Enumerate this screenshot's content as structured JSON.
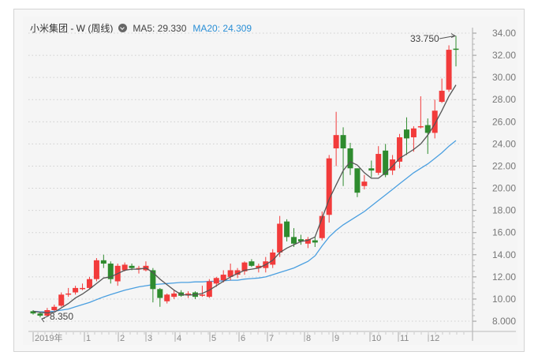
{
  "title": {
    "name": "小米集团 - W (周线)",
    "ma5_label": "MA5: 29.330",
    "ma20_label": "MA20: 24.309"
  },
  "colors": {
    "up": "#f23b3b",
    "down": "#2e8b2e",
    "ma5": "#555555",
    "ma20": "#4a9fe0",
    "grid": "#cfcfcf"
  },
  "annotations": {
    "high": "33.750",
    "low": "8.350"
  },
  "chart_data": {
    "type": "candlestick",
    "title": "小米集团 - W (周线)",
    "subtitle": "MA5: 29.330  MA20: 24.309",
    "xlabel": "",
    "ylabel": "",
    "ylim": [
      7.5,
      34.5
    ],
    "y_ticks": [
      "34.00",
      "32.00",
      "30.00",
      "28.00",
      "26.00",
      "24.00",
      "22.00",
      "20.00",
      "18.00",
      "16.00",
      "14.00",
      "12.00",
      "10.00",
      "8.000"
    ],
    "x_ticks": [
      "2019年",
      "1",
      "2",
      "3",
      "4",
      "5",
      "6",
      "7",
      "8",
      "9",
      "10",
      "11",
      "12"
    ],
    "grid": true,
    "legend": [
      "MA5: 29.330",
      "MA20: 24.309"
    ],
    "annotations": [
      {
        "text": "33.750",
        "type": "max"
      },
      {
        "text": "8.350",
        "type": "min"
      }
    ],
    "candles": [
      {
        "o": 8.9,
        "h": 9.0,
        "l": 8.6,
        "c": 8.7
      },
      {
        "o": 8.7,
        "h": 8.8,
        "l": 8.35,
        "c": 8.5
      },
      {
        "o": 8.5,
        "h": 9.2,
        "l": 8.4,
        "c": 9.0
      },
      {
        "o": 9.0,
        "h": 9.5,
        "l": 8.9,
        "c": 9.3
      },
      {
        "o": 9.4,
        "h": 10.6,
        "l": 9.3,
        "c": 10.4
      },
      {
        "o": 10.5,
        "h": 11.0,
        "l": 10.2,
        "c": 10.5
      },
      {
        "o": 10.6,
        "h": 11.2,
        "l": 10.4,
        "c": 11.0
      },
      {
        "o": 11.0,
        "h": 11.4,
        "l": 10.8,
        "c": 11.0
      },
      {
        "o": 11.0,
        "h": 12.0,
        "l": 10.9,
        "c": 11.8
      },
      {
        "o": 11.8,
        "h": 13.7,
        "l": 11.6,
        "c": 13.5
      },
      {
        "o": 13.5,
        "h": 14.0,
        "l": 12.8,
        "c": 13.2
      },
      {
        "o": 13.2,
        "h": 13.4,
        "l": 11.4,
        "c": 11.8
      },
      {
        "o": 11.6,
        "h": 13.2,
        "l": 11.2,
        "c": 13.0
      },
      {
        "o": 12.6,
        "h": 13.3,
        "l": 12.5,
        "c": 13.1
      },
      {
        "o": 13.0,
        "h": 13.2,
        "l": 12.6,
        "c": 12.8
      },
      {
        "o": 12.8,
        "h": 13.0,
        "l": 12.3,
        "c": 12.8
      },
      {
        "o": 12.6,
        "h": 13.4,
        "l": 12.5,
        "c": 13.0
      },
      {
        "o": 12.6,
        "h": 12.8,
        "l": 9.7,
        "c": 10.9
      },
      {
        "o": 10.9,
        "h": 11.0,
        "l": 9.3,
        "c": 10.1
      },
      {
        "o": 9.8,
        "h": 10.5,
        "l": 9.6,
        "c": 10.4
      },
      {
        "o": 10.2,
        "h": 10.8,
        "l": 10.0,
        "c": 10.5
      },
      {
        "o": 10.6,
        "h": 10.8,
        "l": 10.2,
        "c": 10.3
      },
      {
        "o": 10.4,
        "h": 10.7,
        "l": 10.1,
        "c": 10.5
      },
      {
        "o": 10.6,
        "h": 10.7,
        "l": 10.0,
        "c": 10.2
      },
      {
        "o": 10.3,
        "h": 11.2,
        "l": 10.2,
        "c": 10.4
      },
      {
        "o": 10.2,
        "h": 11.8,
        "l": 10.1,
        "c": 11.6
      },
      {
        "o": 11.4,
        "h": 12.0,
        "l": 11.1,
        "c": 11.9
      },
      {
        "o": 11.7,
        "h": 12.6,
        "l": 11.5,
        "c": 12.2
      },
      {
        "o": 12.0,
        "h": 13.2,
        "l": 11.7,
        "c": 12.6
      },
      {
        "o": 12.2,
        "h": 12.8,
        "l": 11.9,
        "c": 12.6
      },
      {
        "o": 12.5,
        "h": 13.4,
        "l": 12.2,
        "c": 13.3
      },
      {
        "o": 13.4,
        "h": 13.6,
        "l": 12.9,
        "c": 13.0
      },
      {
        "o": 12.8,
        "h": 13.2,
        "l": 12.4,
        "c": 13.0
      },
      {
        "o": 12.8,
        "h": 13.8,
        "l": 12.4,
        "c": 13.4
      },
      {
        "o": 13.1,
        "h": 14.5,
        "l": 12.8,
        "c": 14.2
      },
      {
        "o": 14.2,
        "h": 17.5,
        "l": 13.8,
        "c": 16.8
      },
      {
        "o": 17.0,
        "h": 17.2,
        "l": 15.2,
        "c": 15.6
      },
      {
        "o": 15.6,
        "h": 16.4,
        "l": 14.7,
        "c": 15.0
      },
      {
        "o": 15.4,
        "h": 15.8,
        "l": 14.9,
        "c": 15.2
      },
      {
        "o": 15.0,
        "h": 15.6,
        "l": 14.6,
        "c": 15.4
      },
      {
        "o": 15.3,
        "h": 15.6,
        "l": 14.7,
        "c": 15.1
      },
      {
        "o": 15.5,
        "h": 17.9,
        "l": 15.3,
        "c": 17.5
      },
      {
        "o": 17.6,
        "h": 23.0,
        "l": 16.9,
        "c": 22.7
      },
      {
        "o": 23.6,
        "h": 26.9,
        "l": 22.0,
        "c": 24.8
      },
      {
        "o": 24.8,
        "h": 25.5,
        "l": 20.2,
        "c": 23.6
      },
      {
        "o": 23.6,
        "h": 24.1,
        "l": 21.2,
        "c": 21.8
      },
      {
        "o": 21.8,
        "h": 21.8,
        "l": 19.2,
        "c": 19.6
      },
      {
        "o": 20.2,
        "h": 21.2,
        "l": 19.9,
        "c": 20.6
      },
      {
        "o": 21.8,
        "h": 22.5,
        "l": 21.0,
        "c": 21.6
      },
      {
        "o": 21.4,
        "h": 23.8,
        "l": 21.2,
        "c": 23.1
      },
      {
        "o": 23.4,
        "h": 24.0,
        "l": 21.0,
        "c": 21.2
      },
      {
        "o": 21.6,
        "h": 23.0,
        "l": 21.2,
        "c": 22.6
      },
      {
        "o": 22.4,
        "h": 24.9,
        "l": 21.8,
        "c": 24.6
      },
      {
        "o": 25.3,
        "h": 26.4,
        "l": 23.0,
        "c": 24.5
      },
      {
        "o": 24.6,
        "h": 25.6,
        "l": 23.3,
        "c": 25.4
      },
      {
        "o": 25.6,
        "h": 28.3,
        "l": 25.4,
        "c": 25.6
      },
      {
        "o": 25.7,
        "h": 26.3,
        "l": 23.1,
        "c": 25.0
      },
      {
        "o": 25.0,
        "h": 28.0,
        "l": 24.5,
        "c": 27.0
      },
      {
        "o": 27.8,
        "h": 29.9,
        "l": 27.7,
        "c": 28.8
      },
      {
        "o": 28.9,
        "h": 32.9,
        "l": 28.7,
        "c": 32.5
      },
      {
        "o": 32.6,
        "h": 33.75,
        "l": 31.0,
        "c": 32.5
      }
    ],
    "ma5": [
      8.9,
      8.8,
      8.75,
      8.8,
      9.2,
      9.6,
      10.1,
      10.45,
      10.9,
      11.4,
      11.9,
      12.0,
      12.3,
      12.6,
      12.7,
      12.7,
      12.8,
      12.4,
      11.8,
      11.3,
      10.8,
      10.4,
      10.35,
      10.4,
      10.5,
      10.8,
      11.2,
      11.6,
      12.0,
      12.3,
      12.6,
      12.7,
      12.8,
      13.1,
      13.5,
      14.2,
      14.6,
      14.9,
      15.2,
      15.3,
      15.6,
      17.3,
      19.0,
      20.3,
      21.6,
      22.4,
      22.1,
      21.4,
      20.9,
      20.9,
      21.4,
      22.0,
      22.7,
      23.1,
      23.5,
      24.0,
      24.8,
      25.8,
      27.0,
      28.3,
      29.33
    ],
    "ma20": [
      8.9,
      8.85,
      8.85,
      8.9,
      9.0,
      9.1,
      9.3,
      9.5,
      9.7,
      9.95,
      10.2,
      10.4,
      10.6,
      10.8,
      10.95,
      11.1,
      11.2,
      11.3,
      11.35,
      11.4,
      11.45,
      11.5,
      11.5,
      11.55,
      11.55,
      11.6,
      11.6,
      11.65,
      11.7,
      11.7,
      11.8,
      11.85,
      11.9,
      12.0,
      12.2,
      12.4,
      12.6,
      12.8,
      13.1,
      13.4,
      13.9,
      14.8,
      15.6,
      16.2,
      16.7,
      17.1,
      17.5,
      17.9,
      18.4,
      18.9,
      19.4,
      19.9,
      20.4,
      20.9,
      21.4,
      21.8,
      22.2,
      22.7,
      23.2,
      23.8,
      24.309
    ]
  }
}
